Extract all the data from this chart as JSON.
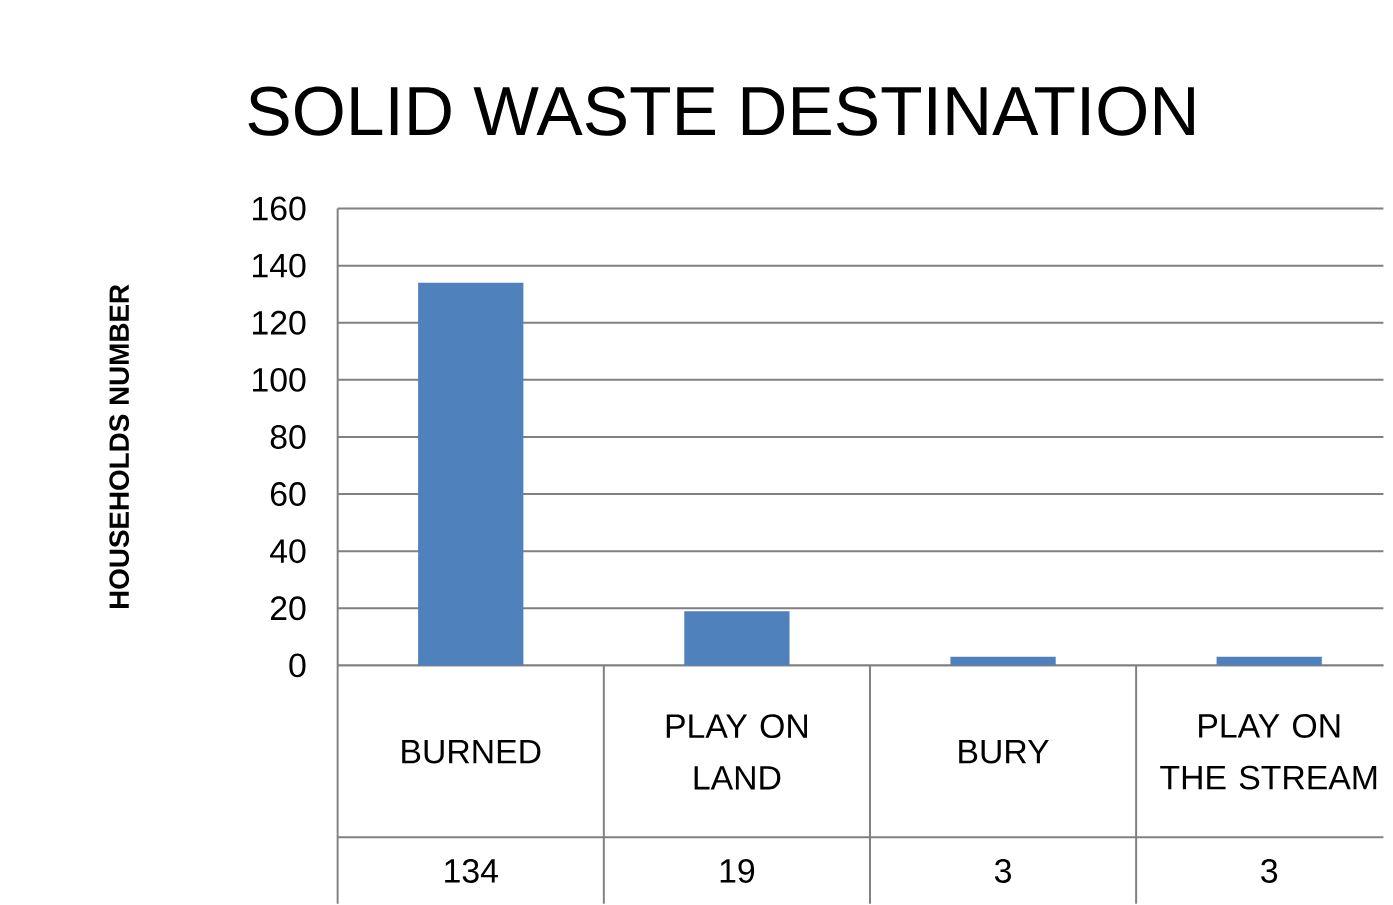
{
  "chart_data": {
    "type": "bar",
    "title": "SOLID WASTE DESTINATION",
    "ylabel": "HOUSEHOLDS  NUMBER",
    "categories": [
      "BURNED",
      "PLAY ON LAND",
      "BURY",
      "PLAY ON THE STREAM"
    ],
    "values": [
      134,
      19,
      3,
      3
    ],
    "color": "#4f81bd",
    "ylim": [
      0,
      160
    ],
    "yticks": [
      0,
      20,
      40,
      60,
      80,
      100,
      120,
      140,
      160
    ],
    "grid": "y",
    "data_labels": true
  }
}
